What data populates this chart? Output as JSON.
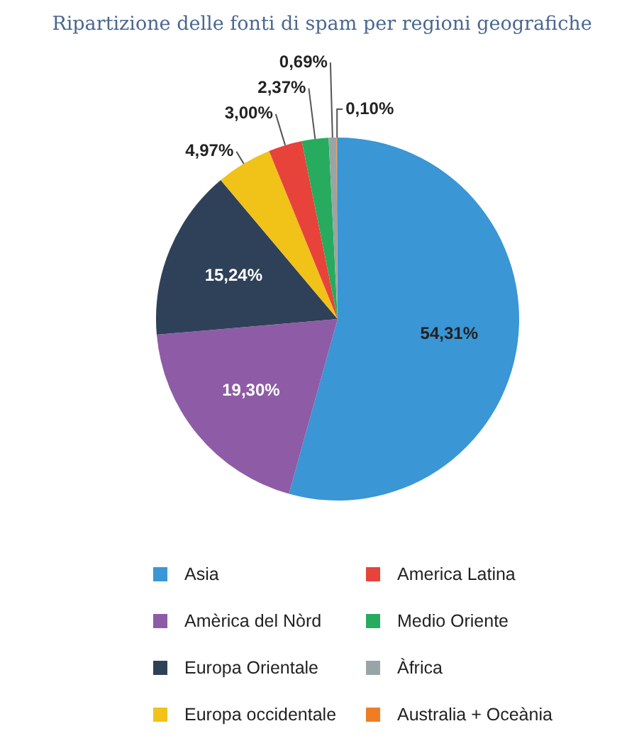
{
  "chart_data": {
    "type": "pie",
    "title": "Ripartizione delle fonti di spam per regioni geografiche",
    "categories": [
      "Asia",
      "Amèrica del Nòrd",
      "Europa Orientale",
      "Europa occidentale",
      "America Latina",
      "Medio Oriente",
      "Àfrica",
      "Australia + Oceània"
    ],
    "values": [
      54.31,
      19.3,
      15.24,
      4.97,
      3.0,
      2.37,
      0.69,
      0.1
    ],
    "colors": [
      "#3a96d4",
      "#8e5ba6",
      "#2f4159",
      "#f1c218",
      "#e7433b",
      "#27ab5e",
      "#98a5a6",
      "#ef7d24"
    ],
    "value_labels": [
      "54,31%",
      "19,30%",
      "15,24%",
      "4,97%",
      "3,00%",
      "2,37%",
      "0,69%",
      "0,10%"
    ],
    "legend": "bottom"
  }
}
